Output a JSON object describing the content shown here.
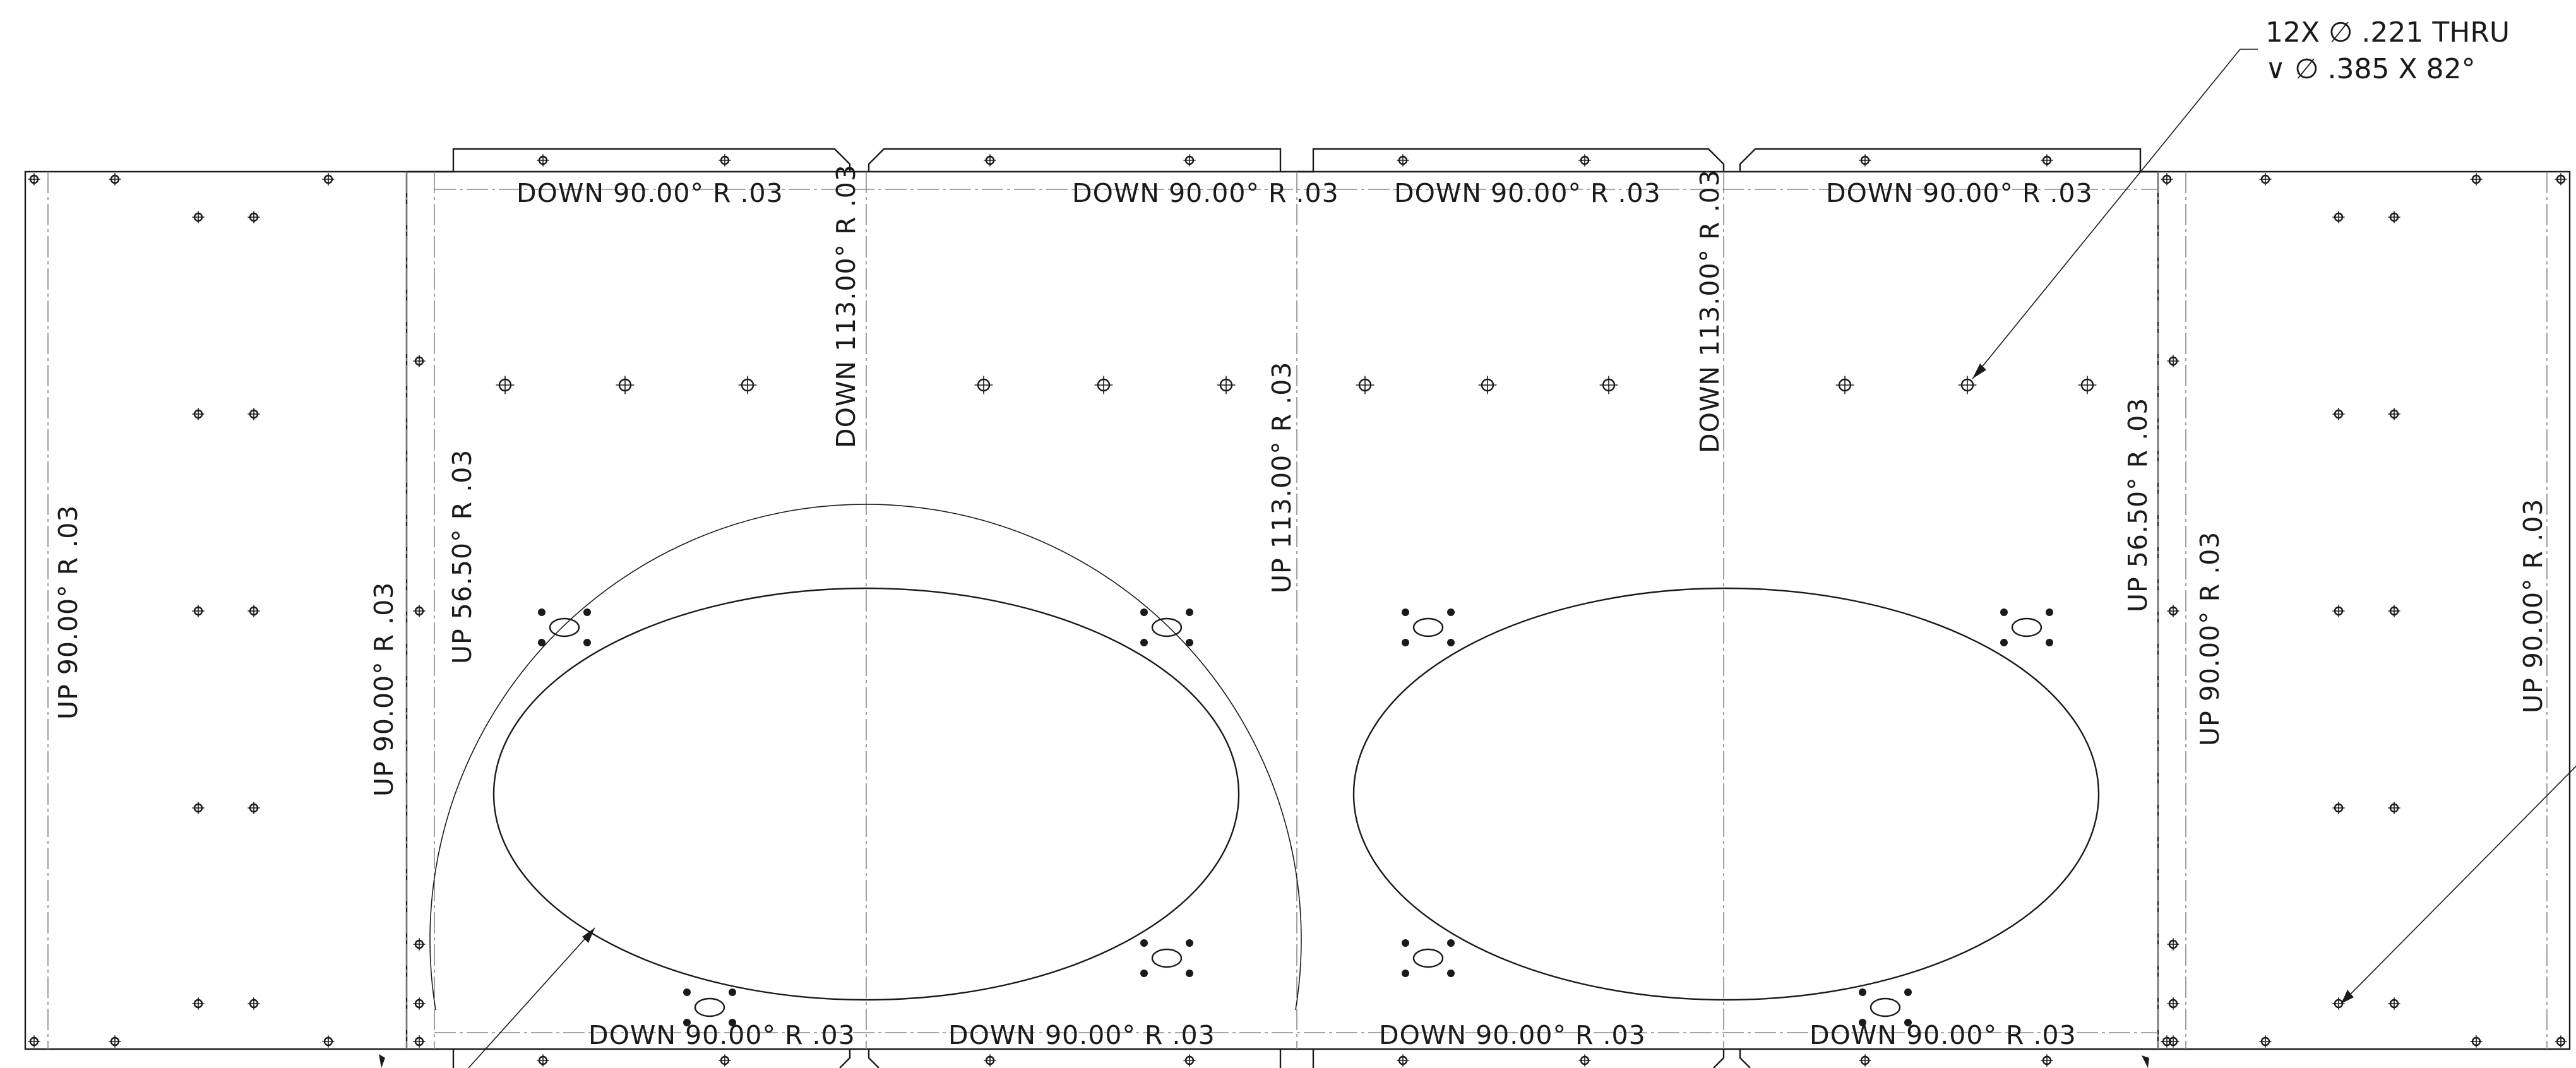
{
  "note": {
    "line1": "12X ∅ .221 THRU",
    "line2": "∨ ∅ .385 X 82°"
  },
  "bend_labels": {
    "down_90": "DOWN  90.00°  R .03",
    "down_113": "DOWN  113.00°  R .03",
    "up_113": "UP  113.00°  R .03",
    "up_90": "UP  90.00°  R .03",
    "up_56": "UP  56.50°  R .03"
  }
}
